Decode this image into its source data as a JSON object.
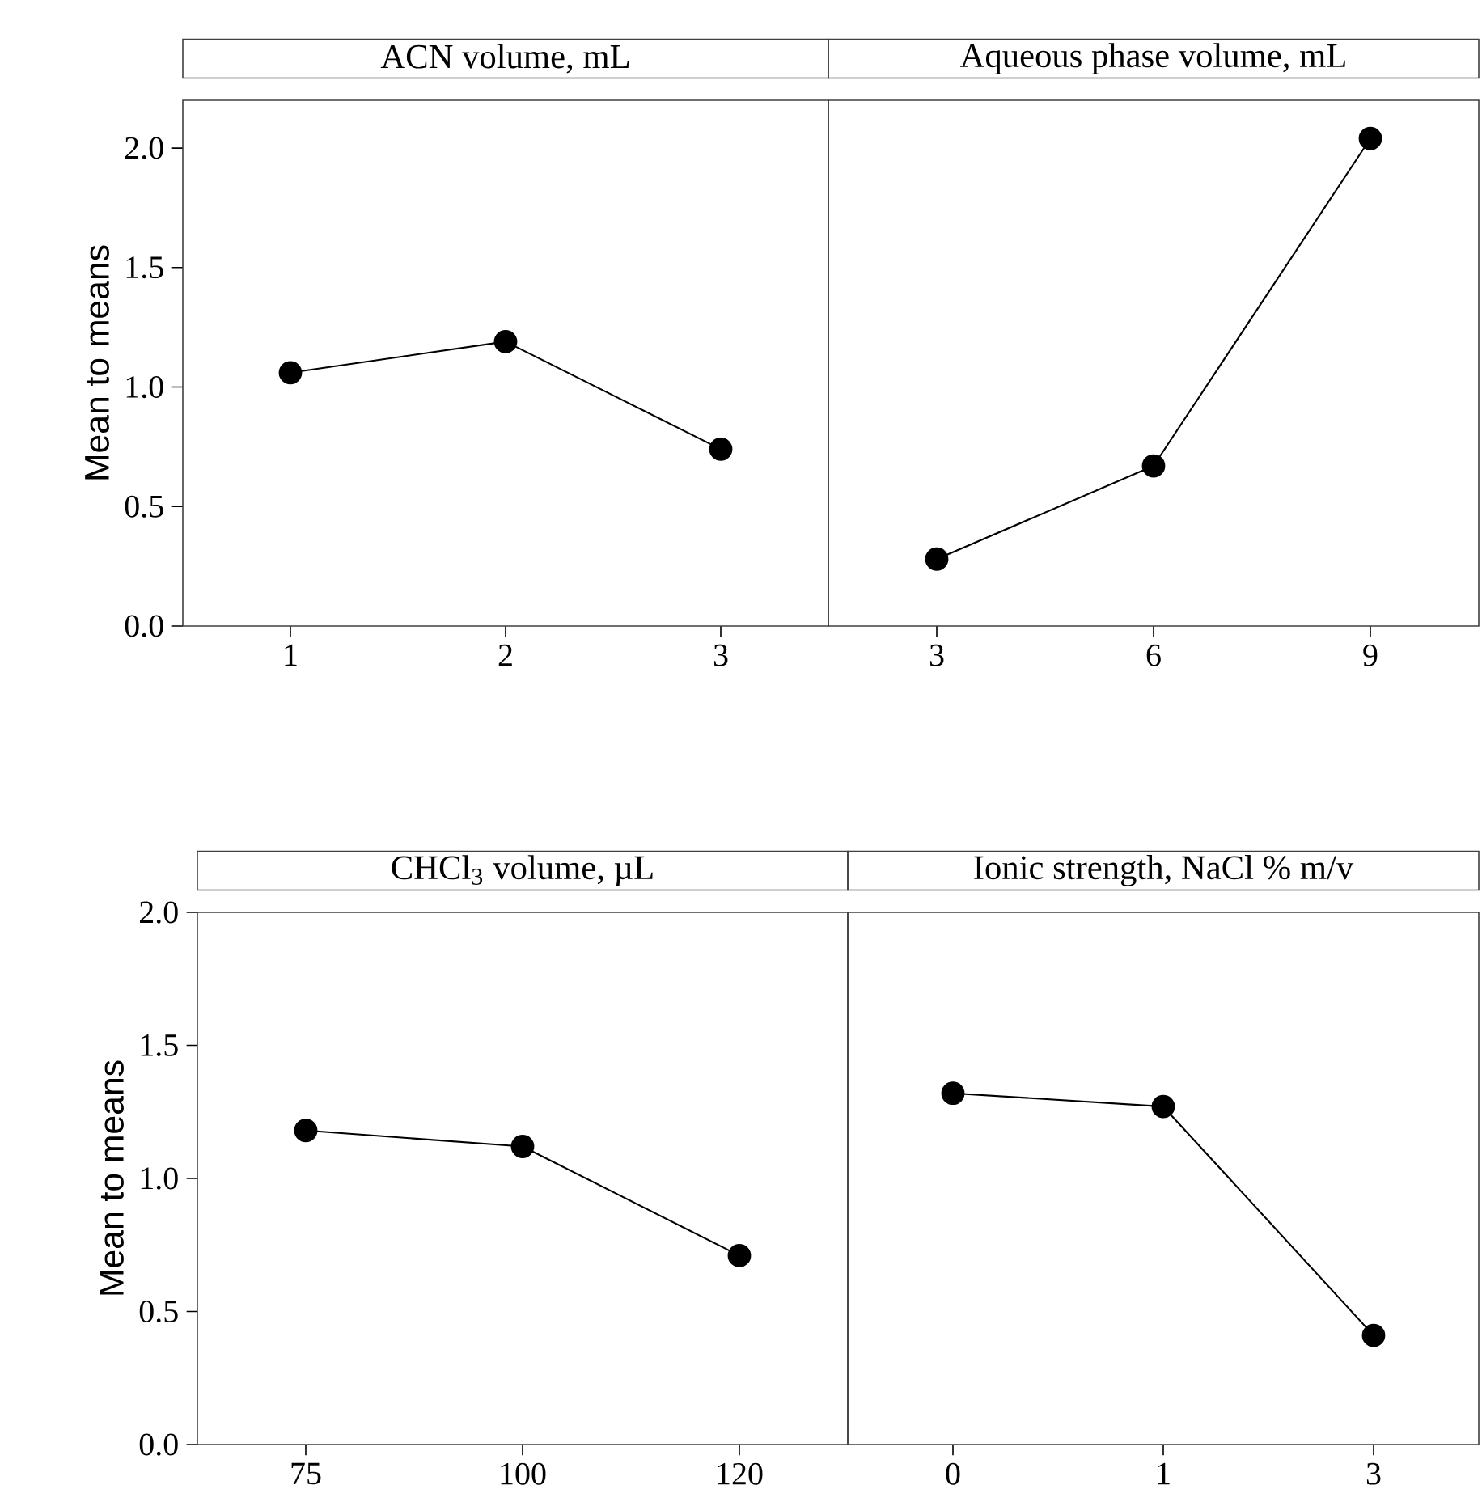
{
  "chart_data": [
    {
      "type": "line",
      "title": "ACN volume, mL",
      "ylabel": "Mean to means",
      "categories": [
        "1",
        "2",
        "3"
      ],
      "values": [
        1.06,
        1.19,
        0.74
      ],
      "color": "#000000",
      "marker": "circle",
      "line_style": "solid",
      "ylim": [
        0,
        2.2
      ],
      "yticks": [
        {
          "value": 0,
          "label": "0.0"
        },
        {
          "value": 0.5,
          "label": "0.5"
        },
        {
          "value": 1,
          "label": "1.0"
        },
        {
          "value": 1.5,
          "label": "1.5"
        },
        {
          "value": 2,
          "label": "2.0"
        }
      ]
    },
    {
      "type": "line",
      "title": "Aqueous phase volume, mL",
      "categories": [
        "3",
        "6",
        "9"
      ],
      "values": [
        0.28,
        0.67,
        2.04
      ],
      "color": "#000000",
      "marker": "circle",
      "line_style": "solid",
      "ylim": [
        0,
        2.2
      ],
      "tick_labels": "x"
    },
    {
      "type": "line",
      "title": "CHCl$_{3}$ volume, µL",
      "ylabel": "Mean to means",
      "categories": [
        "75",
        "100",
        "120"
      ],
      "values": [
        1.18,
        1.12,
        0.71
      ],
      "color": "#000000",
      "marker": "circle",
      "line_style": "solid",
      "ylim": [
        0,
        2
      ],
      "yticks": [
        {
          "value": 0,
          "label": "0.0"
        },
        {
          "value": 0.5,
          "label": "0.5"
        },
        {
          "value": 1,
          "label": "1.0"
        },
        {
          "value": 1.5,
          "label": "1.5"
        },
        {
          "value": 2,
          "label": "2.0"
        }
      ]
    },
    {
      "type": "line",
      "title": "Ionic strength, NaCl  % m/v",
      "categories": [
        "0",
        "1",
        "3"
      ],
      "values": [
        1.32,
        1.27,
        0.41
      ],
      "color": "#000000",
      "marker": "circle",
      "line_style": "solid",
      "ylim": [
        0,
        2
      ],
      "tick_labels": "x"
    }
  ]
}
